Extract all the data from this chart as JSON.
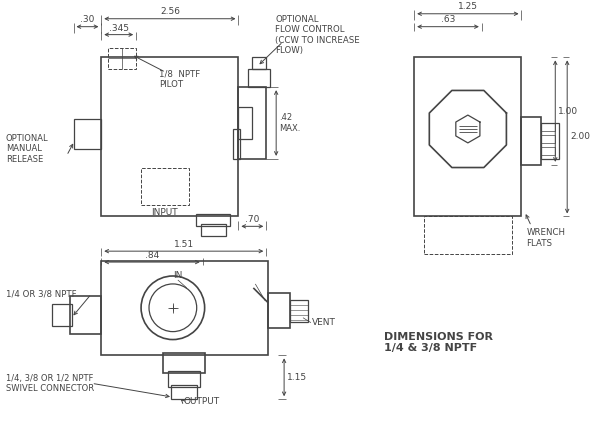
{
  "line_color": "#444444",
  "lw": 0.9,
  "lw2": 1.2,
  "annotations": {
    "dim_030": ".30",
    "dim_256": "2.56",
    "dim_345": ".345",
    "dim_pilot": "1/8  NPTF\nPILOT",
    "dim_042": ".42\nMAX.",
    "dim_070": ".70",
    "optional_flow": "OPTIONAL\nFLOW CONTROL\n(CCW TO INCREASE\nFLOW)",
    "optional_manual": "OPTIONAL\nMANUAL\nRELEASE",
    "input_label": "INPUT",
    "dim_125": "1.25",
    "dim_063": ".63",
    "dim_200": "2.00",
    "dim_100": "1.00",
    "wrench_flats": "WRENCH\nFLATS",
    "dim_151": "1.51",
    "dim_084": ".84",
    "dim_115": "1.15",
    "vent_label": "VENT",
    "output_label": "OUTPUT",
    "in_label": "IN",
    "nptf_label": "1/4 OR 3/8 NPTF",
    "swivel_label": "1/4, 3/8 OR 1/2 NPTF\nSWIVEL CONNECTOR",
    "dims_note": "DIMENSIONS FOR\n1/4 & 3/8 NPTF"
  }
}
